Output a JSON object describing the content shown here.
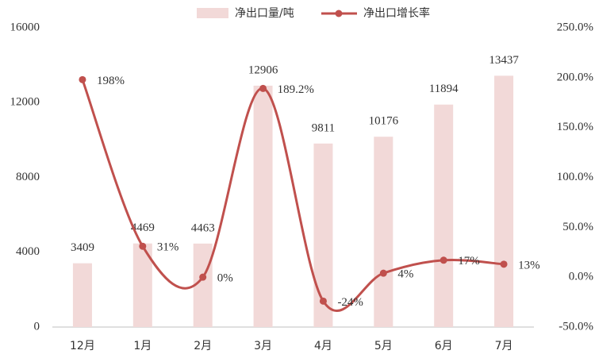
{
  "chart_data": {
    "type": "bar",
    "categories": [
      "12月",
      "1月",
      "2月",
      "3月",
      "4月",
      "5月",
      "6月",
      "7月"
    ],
    "series": [
      {
        "name": "净出口量/吨",
        "type": "bar",
        "color": "#f2d9d8",
        "values": [
          3409,
          4469,
          4463,
          12906,
          9811,
          10176,
          11894,
          13437
        ]
      },
      {
        "name": "净出口增长率",
        "type": "line",
        "axis": "y2",
        "color": "#c0504d",
        "values": [
          198,
          31,
          0,
          189.2,
          -24,
          4,
          17,
          13
        ],
        "value_labels": [
          "198%",
          "31%",
          "0%",
          "189.2%",
          "-24%",
          "4%",
          "17%",
          "13%"
        ]
      }
    ],
    "ylim": [
      0,
      16000
    ],
    "yticks": [
      0,
      4000,
      8000,
      12000,
      16000
    ],
    "y2lim": [
      -50,
      250
    ],
    "y2ticks": [
      {
        "value": -50,
        "label": "-50.0%"
      },
      {
        "value": 0,
        "label": "0.0%"
      },
      {
        "value": 50,
        "label": "50.0%"
      },
      {
        "value": 100,
        "label": "100.0%"
      },
      {
        "value": 150,
        "label": "150.0%"
      },
      {
        "value": 200,
        "label": "200.0%"
      },
      {
        "value": 250,
        "label": "250.0%"
      }
    ],
    "grid": false,
    "legend": "top"
  }
}
